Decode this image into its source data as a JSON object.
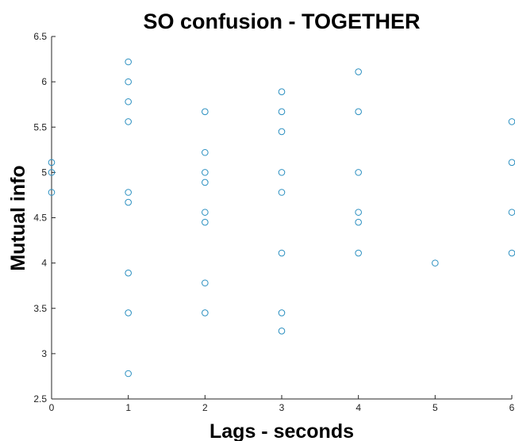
{
  "chart_data": {
    "type": "scatter",
    "title": "SO confusion - TOGETHER",
    "xlabel": "Lags - seconds",
    "ylabel": "Mutual info",
    "xlim": [
      0,
      6
    ],
    "ylim": [
      2.5,
      6.5
    ],
    "xticks": [
      "0",
      "1",
      "2",
      "3",
      "4",
      "5",
      "6"
    ],
    "yticks": [
      "2.5",
      "3",
      "3.5",
      "4",
      "4.5",
      "5",
      "5.5",
      "6",
      "6.5"
    ],
    "grid": false,
    "marker_color": "#2a8fc0",
    "series": [
      {
        "points": [
          [
            0,
            5.11
          ],
          [
            0,
            5.0
          ],
          [
            0,
            4.78
          ],
          [
            1,
            6.22
          ],
          [
            1,
            6.0
          ],
          [
            1,
            5.78
          ],
          [
            1,
            5.56
          ],
          [
            1,
            4.78
          ],
          [
            1,
            4.67
          ],
          [
            1,
            3.89
          ],
          [
            1,
            3.45
          ],
          [
            1,
            2.78
          ],
          [
            2,
            5.67
          ],
          [
            2,
            5.22
          ],
          [
            2,
            5.0
          ],
          [
            2,
            4.89
          ],
          [
            2,
            4.56
          ],
          [
            2,
            4.45
          ],
          [
            2,
            3.78
          ],
          [
            2,
            3.45
          ],
          [
            3,
            5.89
          ],
          [
            3,
            5.67
          ],
          [
            3,
            5.45
          ],
          [
            3,
            5.0
          ],
          [
            3,
            4.78
          ],
          [
            3,
            4.11
          ],
          [
            3,
            3.45
          ],
          [
            3,
            3.25
          ],
          [
            4,
            6.11
          ],
          [
            4,
            5.67
          ],
          [
            4,
            5.0
          ],
          [
            4,
            4.56
          ],
          [
            4,
            4.45
          ],
          [
            4,
            4.11
          ],
          [
            5,
            4.0
          ],
          [
            6,
            5.56
          ],
          [
            6,
            5.11
          ],
          [
            6,
            4.56
          ],
          [
            6,
            4.11
          ]
        ]
      }
    ]
  }
}
